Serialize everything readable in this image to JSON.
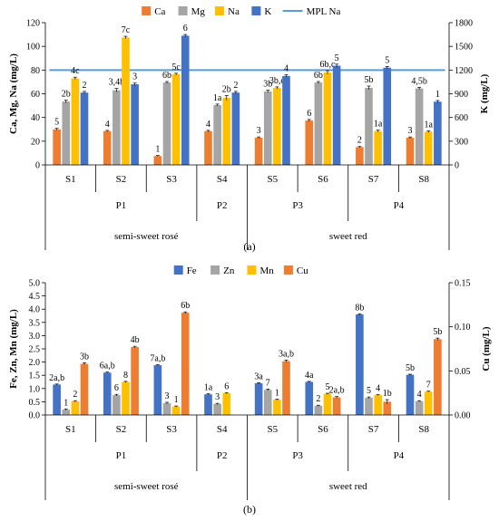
{
  "chart_data": [
    {
      "type": "bar",
      "panel_label": "(a)",
      "categories": [
        "S1",
        "S2",
        "S3",
        "S4",
        "S5",
        "S6",
        "S7",
        "S8"
      ],
      "producer_groups": [
        {
          "label": "P1",
          "categories": [
            "S1",
            "S2",
            "S3"
          ]
        },
        {
          "label": "P2",
          "categories": [
            "S4"
          ]
        },
        {
          "label": "P3",
          "categories": [
            "S5",
            "S6"
          ]
        },
        {
          "label": "P4",
          "categories": [
            "S7",
            "S8"
          ]
        }
      ],
      "style_groups": [
        {
          "label": "semi-sweet rosé",
          "categories": [
            "S1",
            "S2",
            "S3",
            "S4"
          ]
        },
        {
          "label": "sweet red",
          "categories": [
            "S5",
            "S6",
            "S7",
            "S8"
          ]
        }
      ],
      "ylabel": "Ca, Mg, Na (mg/L)",
      "ylim": [
        0,
        120
      ],
      "yticks": [
        "0",
        "20",
        "40",
        "60",
        "80",
        "100",
        "120"
      ],
      "y2label": "K (mg/L)",
      "y2lim": [
        0,
        1800
      ],
      "y2ticks": [
        "0",
        "300",
        "600",
        "900",
        "1200",
        "1500",
        "1800"
      ],
      "legend_position": "top",
      "series": [
        {
          "name": "Ca",
          "axis": "left",
          "color": "#ED7D31",
          "values": [
            30,
            28.5,
            7.5,
            28.5,
            23,
            37.5,
            15,
            23
          ],
          "errors": [
            0.8,
            0.6,
            0.4,
            0.6,
            0.6,
            0.8,
            0.5,
            0.6
          ],
          "labels": [
            "5",
            "4",
            "1",
            "4",
            "3",
            "6",
            "2",
            "3"
          ]
        },
        {
          "name": "Mg",
          "axis": "left",
          "color": "#A5A5A5",
          "values": [
            53.5,
            63,
            69.5,
            50.5,
            62,
            69.5,
            65,
            64.5
          ],
          "errors": [
            1.2,
            1.5,
            0.8,
            0.8,
            1,
            0.8,
            1.5,
            1
          ],
          "labels": [
            "2b",
            "3,4b",
            "6b",
            "1a",
            "3b",
            "6b",
            "5b",
            "4,5b"
          ]
        },
        {
          "name": "Na",
          "axis": "left",
          "color": "#FFC000",
          "values": [
            73,
            107.5,
            76.5,
            56.5,
            65,
            78,
            28.5,
            28
          ],
          "errors": [
            1,
            1,
            0.8,
            2,
            0.8,
            1.5,
            0.8,
            0.8
          ],
          "labels": [
            "4c",
            "7c",
            "5c",
            "2b",
            "3b,c",
            "6b,c",
            "1a",
            "1a"
          ]
        },
        {
          "name": "K",
          "axis": "right",
          "color": "#4472C4",
          "values": [
            915,
            1020,
            1635,
            915,
            1125,
            1255,
            1230,
            800
          ],
          "errors": [
            15,
            15,
            15,
            15,
            15,
            20,
            15,
            15
          ],
          "labels": [
            "2",
            "3",
            "6",
            "2",
            "4",
            "5",
            "5",
            "1"
          ]
        }
      ],
      "reference_lines": [
        {
          "name": "MPL Na",
          "axis": "left",
          "value": 80,
          "color": "#5B9BD5"
        }
      ]
    },
    {
      "type": "bar",
      "panel_label": "(b)",
      "categories": [
        "S1",
        "S2",
        "S3",
        "S4",
        "S5",
        "S6",
        "S7",
        "S8"
      ],
      "producer_groups": [
        {
          "label": "P1",
          "categories": [
            "S1",
            "S2",
            "S3"
          ]
        },
        {
          "label": "P2",
          "categories": [
            "S4"
          ]
        },
        {
          "label": "P3",
          "categories": [
            "S5",
            "S6"
          ]
        },
        {
          "label": "P4",
          "categories": [
            "S7",
            "S8"
          ]
        }
      ],
      "style_groups": [
        {
          "label": "semi-sweet rosé",
          "categories": [
            "S1",
            "S2",
            "S3",
            "S4"
          ]
        },
        {
          "label": "sweet red",
          "categories": [
            "S5",
            "S6",
            "S7",
            "S8"
          ]
        }
      ],
      "ylabel": "Fe, Zn, Mn (mg/L)",
      "ylim": [
        0,
        5
      ],
      "yticks": [
        "0.0",
        "0.5",
        "1.0",
        "1.5",
        "2.0",
        "2.5",
        "3.0",
        "3.5",
        "4.0",
        "4.5",
        "5.0"
      ],
      "y2label": "Cu (mg/L)",
      "y2lim": [
        0,
        0.15
      ],
      "y2ticks": [
        "0.00",
        "0.05",
        "0.10",
        "0.15"
      ],
      "legend_position": "top",
      "series": [
        {
          "name": "Fe",
          "axis": "left",
          "color": "#4472C4",
          "values": [
            1.15,
            1.6,
            1.88,
            0.78,
            1.2,
            1.25,
            3.8,
            1.52
          ],
          "errors": [
            0.02,
            0.02,
            0.02,
            0.02,
            0.02,
            0.02,
            0.02,
            0.02
          ],
          "labels": [
            "2a,b",
            "6a,b",
            "7a,b",
            "1a",
            "3a",
            "4a",
            "8b",
            "5b"
          ]
        },
        {
          "name": "Zn",
          "axis": "left",
          "color": "#A5A5A5",
          "values": [
            0.2,
            0.75,
            0.45,
            0.42,
            0.95,
            0.35,
            0.65,
            0.52
          ],
          "errors": [
            0.03,
            0.03,
            0.03,
            0.02,
            0.03,
            0.02,
            0.03,
            0.02
          ],
          "labels": [
            "1",
            "6",
            "3",
            "3",
            "7",
            "2",
            "5",
            "4"
          ]
        },
        {
          "name": "Mn",
          "axis": "left",
          "color": "#FFC000",
          "values": [
            0.52,
            1.25,
            0.32,
            0.82,
            0.58,
            0.8,
            0.75,
            0.88
          ],
          "errors": [
            0.02,
            0.02,
            0.02,
            0.02,
            0.02,
            0.02,
            0.02,
            0.02
          ],
          "labels": [
            "2",
            "8",
            "1",
            "6",
            "1",
            "5",
            "4",
            "7"
          ]
        },
        {
          "name": "Cu",
          "axis": "right",
          "color": "#ED7D31",
          "values": [
            0.058,
            0.077,
            0.116,
            0,
            0.061,
            0.02,
            0.015,
            0.086
          ],
          "errors": [
            0.0012,
            0.0009,
            0.0009,
            0,
            0.0012,
            0.0009,
            0.0024,
            0.0012
          ],
          "labels": [
            "3b",
            "4b",
            "6b",
            "",
            "3a,b",
            "2a,b",
            "1b",
            "5b"
          ]
        }
      ]
    }
  ]
}
